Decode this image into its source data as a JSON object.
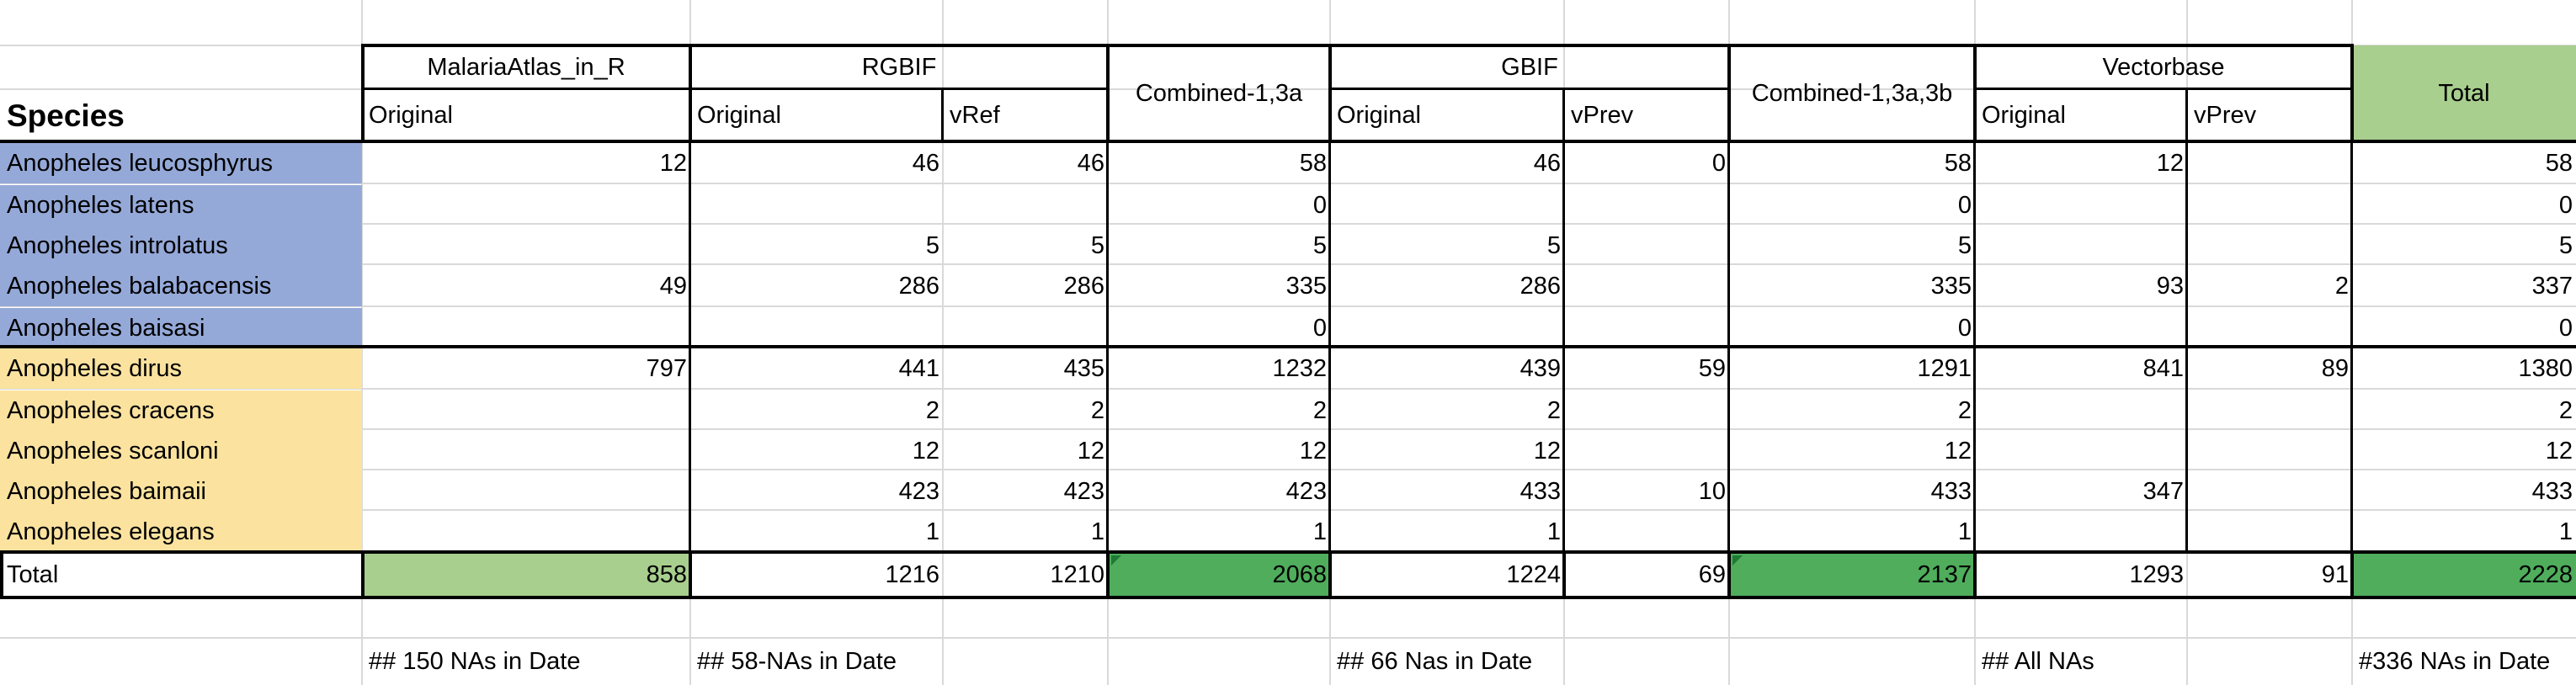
{
  "colors": {
    "blue_fill": "#95a9d9",
    "yellow_fill": "#fbe39f",
    "light_green": "#a8cf8e",
    "green": "#4fad5c",
    "total_header_green": "#a8cf8e",
    "grid": "#d9d9d9"
  },
  "header": {
    "species": "Species",
    "malaria_group": "MalariaAtlas_in_R",
    "rgbif_group": "RGBIF",
    "combined_13a": "Combined-1,3a",
    "gbif_group": "GBIF",
    "combined_13a3b": "Combined-1,3a,3b",
    "vectorbase_group": "Vectorbase",
    "total": "Total",
    "original": "Original",
    "vref": "vRef",
    "vprev": "vPrev"
  },
  "rows": [
    {
      "species": "Anopheles leucosphyrus",
      "group": "blue",
      "malaria": "12",
      "rgbif_orig": "46",
      "rgbif_vref": "46",
      "comb13a": "58",
      "gbif_orig": "46",
      "gbif_vprev": "0",
      "comb13a3b": "58",
      "vb_orig": "12",
      "vb_vprev": "",
      "total": "58"
    },
    {
      "species": "Anopheles latens",
      "group": "blue",
      "malaria": "",
      "rgbif_orig": "",
      "rgbif_vref": "",
      "comb13a": "0",
      "gbif_orig": "",
      "gbif_vprev": "",
      "comb13a3b": "0",
      "vb_orig": "",
      "vb_vprev": "",
      "total": "0"
    },
    {
      "species": "Anopheles introlatus",
      "group": "blue",
      "malaria": "",
      "rgbif_orig": "5",
      "rgbif_vref": "5",
      "comb13a": "5",
      "gbif_orig": "5",
      "gbif_vprev": "",
      "comb13a3b": "5",
      "vb_orig": "",
      "vb_vprev": "",
      "total": "5"
    },
    {
      "species": "Anopheles balabacensis",
      "group": "blue",
      "malaria": "49",
      "rgbif_orig": "286",
      "rgbif_vref": "286",
      "comb13a": "335",
      "gbif_orig": "286",
      "gbif_vprev": "",
      "comb13a3b": "335",
      "vb_orig": "93",
      "vb_vprev": "2",
      "total": "337"
    },
    {
      "species": "Anopheles baisasi",
      "group": "blue",
      "malaria": "",
      "rgbif_orig": "",
      "rgbif_vref": "",
      "comb13a": "0",
      "gbif_orig": "",
      "gbif_vprev": "",
      "comb13a3b": "0",
      "vb_orig": "",
      "vb_vprev": "",
      "total": "0"
    },
    {
      "species": "Anopheles dirus",
      "group": "yellow",
      "malaria": "797",
      "rgbif_orig": "441",
      "rgbif_vref": "435",
      "comb13a": "1232",
      "gbif_orig": "439",
      "gbif_vprev": "59",
      "comb13a3b": "1291",
      "vb_orig": "841",
      "vb_vprev": "89",
      "total": "1380"
    },
    {
      "species": "Anopheles cracens",
      "group": "yellow",
      "malaria": "",
      "rgbif_orig": "2",
      "rgbif_vref": "2",
      "comb13a": "2",
      "gbif_orig": "2",
      "gbif_vprev": "",
      "comb13a3b": "2",
      "vb_orig": "",
      "vb_vprev": "",
      "total": "2"
    },
    {
      "species": "Anopheles scanloni",
      "group": "yellow",
      "malaria": "",
      "rgbif_orig": "12",
      "rgbif_vref": "12",
      "comb13a": "12",
      "gbif_orig": "12",
      "gbif_vprev": "",
      "comb13a3b": "12",
      "vb_orig": "",
      "vb_vprev": "",
      "total": "12"
    },
    {
      "species": "Anopheles baimaii",
      "group": "yellow",
      "malaria": "",
      "rgbif_orig": "423",
      "rgbif_vref": "423",
      "comb13a": "423",
      "gbif_orig": "433",
      "gbif_vprev": "10",
      "comb13a3b": "433",
      "vb_orig": "347",
      "vb_vprev": "",
      "total": "433"
    },
    {
      "species": "Anopheles elegans",
      "group": "yellow",
      "malaria": "",
      "rgbif_orig": "1",
      "rgbif_vref": "1",
      "comb13a": "1",
      "gbif_orig": "1",
      "gbif_vprev": "",
      "comb13a3b": "1",
      "vb_orig": "",
      "vb_vprev": "",
      "total": "1"
    }
  ],
  "totals": {
    "label": "Total",
    "malaria": "858",
    "rgbif_orig": "1216",
    "rgbif_vref": "1210",
    "comb13a": "2068",
    "gbif_orig": "1224",
    "gbif_vprev": "69",
    "comb13a3b": "2137",
    "vb_orig": "1293",
    "vb_vprev": "91",
    "total": "2228"
  },
  "notes": {
    "malaria": "## 150 NAs in Date",
    "rgbif": "## 58-NAs in Date",
    "gbif": "## 66 Nas in Date",
    "vectorbase": "## All NAs",
    "total": "#336 NAs in Date"
  }
}
